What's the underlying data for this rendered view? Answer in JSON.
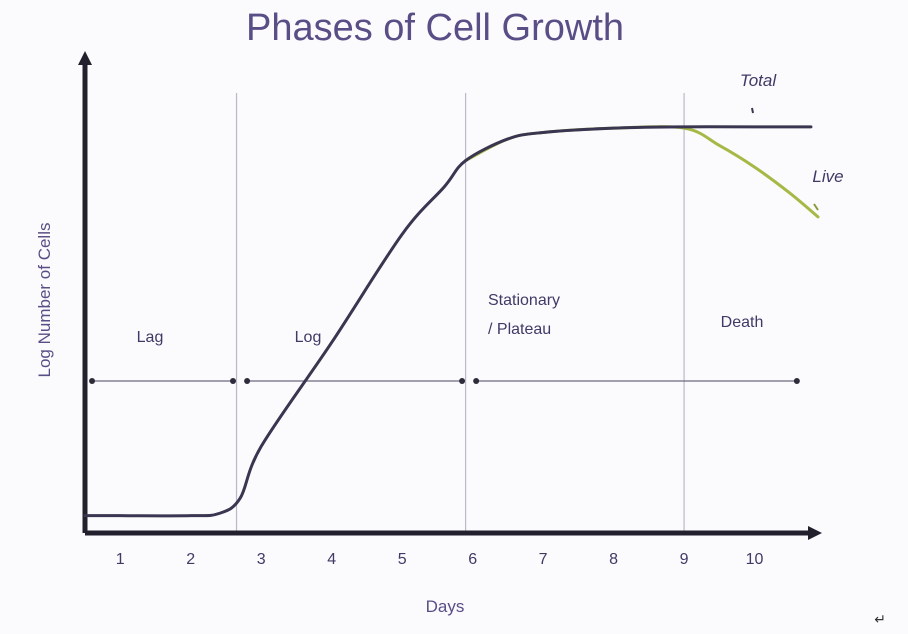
{
  "chart_data": {
    "type": "line",
    "title": "Phases of Cell Growth",
    "xlabel": "Days",
    "ylabel": "Log Number of Cells",
    "xlim": [
      0.5,
      10.9
    ],
    "ylim": [
      0,
      10
    ],
    "x_ticks": [
      "1",
      "2",
      "3",
      "4",
      "5",
      "6",
      "7",
      "8",
      "9",
      "10"
    ],
    "phase_boundaries": [
      2.65,
      5.9,
      9.0
    ],
    "phases": [
      {
        "label": "Lag",
        "x_range": [
          0.6,
          2.6
        ]
      },
      {
        "label": "Log",
        "x_range": [
          2.8,
          5.85
        ]
      },
      {
        "label": "Stationary / Plateau",
        "x_range": [
          6.05,
          10.6
        ]
      },
      {
        "label": "Death",
        "x_range": [
          6.05,
          10.6
        ]
      }
    ],
    "series": [
      {
        "name": "Total",
        "color": "#3a3550",
        "x": [
          0.5,
          1,
          2,
          2.4,
          2.7,
          3,
          4,
          5,
          5.6,
          5.9,
          6.5,
          7,
          8,
          9,
          10,
          10.8
        ],
        "y": [
          0.4,
          0.4,
          0.4,
          0.45,
          0.8,
          2.0,
          4.4,
          6.9,
          8.0,
          8.6,
          9.1,
          9.25,
          9.35,
          9.38,
          9.38,
          9.38
        ]
      },
      {
        "name": "Live",
        "color": "#a6b845",
        "x": [
          5.9,
          6.5,
          7,
          8,
          9,
          9.5,
          10,
          10.5,
          10.9
        ],
        "y": [
          8.6,
          9.1,
          9.25,
          9.35,
          9.35,
          8.95,
          8.45,
          7.85,
          7.3
        ]
      }
    ]
  },
  "labels": {
    "phase_lag": "Lag",
    "phase_log": "Log",
    "phase_stationary_1": "Stationary",
    "phase_stationary_2": "/ Plateau",
    "phase_death": "Death",
    "total": "Total",
    "live": "Live"
  },
  "return_mark": "↵"
}
